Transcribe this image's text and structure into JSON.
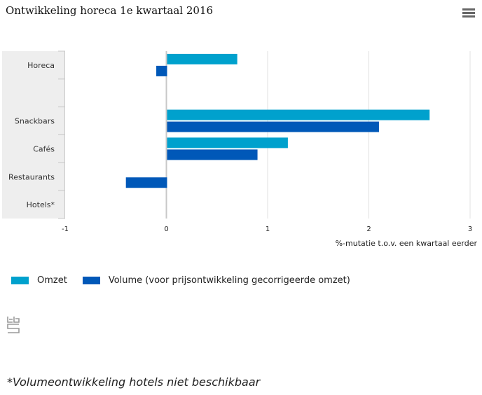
{
  "header": {
    "title": "Ontwikkeling horeca 1e kwartaal 2016",
    "menu_icon": "hamburger-menu-icon"
  },
  "chart_data": {
    "type": "bar",
    "orientation": "horizontal",
    "title": "Ontwikkeling horeca 1e kwartaal 2016",
    "categories": [
      "Horeca",
      "",
      "Snackbars",
      "Cafés",
      "Restaurants",
      "Hotels*"
    ],
    "series": [
      {
        "name": "Omzet",
        "color": "#00A1CD",
        "values": [
          0.7,
          null,
          2.6,
          1.2,
          0.0,
          null
        ]
      },
      {
        "name": "Volume (voor prijsontwikkeling gecorrigeerde omzet)",
        "color": "#0058B8",
        "values": [
          -0.1,
          null,
          2.1,
          0.9,
          -0.4,
          null
        ]
      }
    ],
    "xlabel": "%-mutatie t.o.v. een kwartaal eerder",
    "ylabel": "",
    "xlim": [
      -1,
      3
    ],
    "xticks": [
      "-1",
      "0",
      "1",
      "2",
      "3"
    ],
    "grid": true,
    "legend_position": "bottom-left"
  },
  "legend": {
    "items": [
      {
        "label": "Omzet",
        "color": "#00A1CD"
      },
      {
        "label": "Volume (voor prijsontwikkeling gecorrigeerde omzet)",
        "color": "#0058B8"
      }
    ]
  },
  "logo": {
    "icon": "cbs-logo-icon"
  },
  "footnote": "*Volumeontwikkeling hotels niet beschikbaar"
}
